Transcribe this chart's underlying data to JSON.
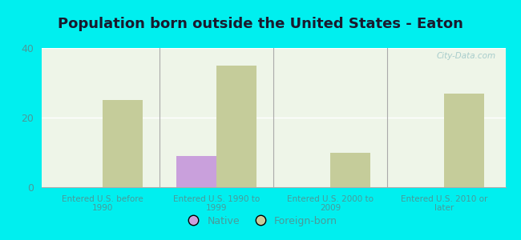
{
  "title": "Population born outside the United States - Eaton",
  "categories": [
    "Entered U.S. before\n1990",
    "Entered U.S. 1990 to\n1999",
    "Entered U.S. 2000 to\n2009",
    "Entered U.S. 2010 or\nlater"
  ],
  "native_values": [
    0,
    9,
    0,
    0
  ],
  "foreign_values": [
    25,
    35,
    10,
    27
  ],
  "native_color": "#c9a0dc",
  "foreign_color": "#c5cc9a",
  "background_color": "#00efef",
  "plot_bg_color": "#eef5e8",
  "ylim": [
    0,
    40
  ],
  "yticks": [
    0,
    20,
    40
  ],
  "bar_width": 0.35,
  "title_fontsize": 13,
  "tick_label_color": "#4a9a9a",
  "watermark": "City-Data.com",
  "legend_labels": [
    "Native",
    "Foreign-born"
  ]
}
